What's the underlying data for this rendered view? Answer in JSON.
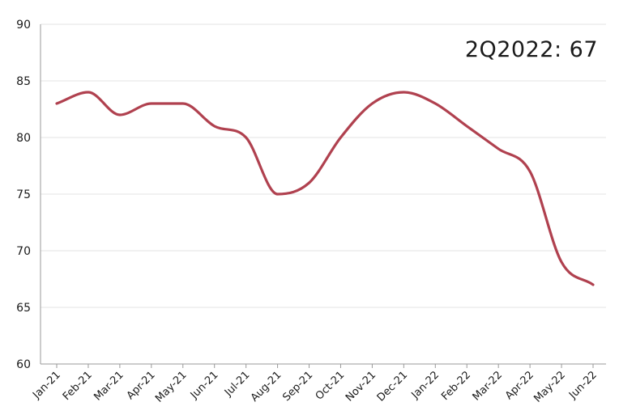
{
  "chart_data": {
    "type": "line",
    "title": "",
    "xlabel": "",
    "ylabel": "",
    "annotation": "2Q2022: 67",
    "categories": [
      "Jan-21",
      "Feb-21",
      "Mar-21",
      "Apr-21",
      "May-21",
      "Jun-21",
      "Jul-21",
      "Aug-21",
      "Sep-21",
      "Oct-21",
      "Nov-21",
      "Dec-21",
      "Jan-22",
      "Feb-22",
      "Mar-22",
      "Apr-22",
      "May-22",
      "Jun-22"
    ],
    "series": [
      {
        "values": [
          83,
          84,
          82,
          83,
          83,
          81,
          80,
          75,
          76,
          80,
          83,
          84,
          83,
          81,
          79,
          77,
          69,
          67
        ],
        "color": "#b0414f"
      }
    ],
    "ylim": [
      60,
      90
    ],
    "yticks": [
      60,
      65,
      70,
      75,
      80,
      85,
      90
    ],
    "grid": true,
    "gridline_color": "#e3e3e3",
    "axis_color": "#9a9a9a",
    "legend": "none"
  }
}
